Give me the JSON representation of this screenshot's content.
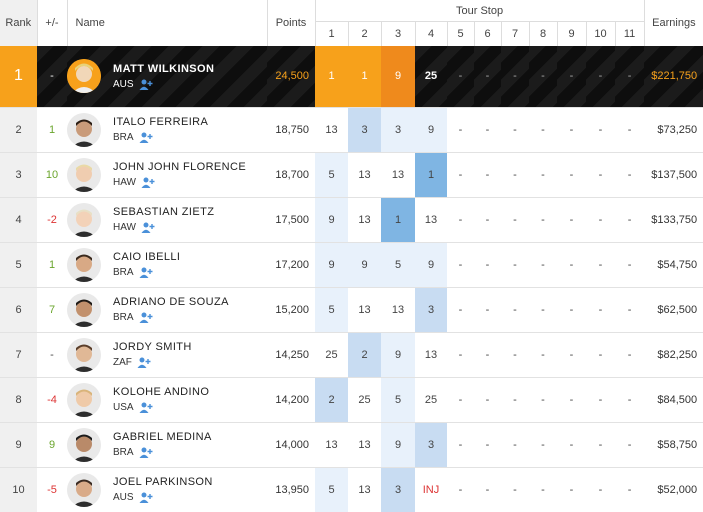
{
  "headers": {
    "rank": "Rank",
    "change": "+/-",
    "name": "Name",
    "points": "Points",
    "tour_stop": "Tour Stop",
    "stops": [
      "1",
      "2",
      "3",
      "4",
      "5",
      "6",
      "7",
      "8",
      "9",
      "10",
      "11"
    ],
    "earnings": "Earnings"
  },
  "leader": {
    "rank": "1",
    "change": "-",
    "name": "MATT WILKINSON",
    "country": "AUS",
    "points": "24,500",
    "results": [
      "1",
      "1",
      "9",
      "25",
      "-",
      "-",
      "-",
      "-",
      "-",
      "-",
      "-"
    ],
    "earnings": "$221,750"
  },
  "rows": [
    {
      "rank": "2",
      "change": "1",
      "dir": "up",
      "name": "ITALO FERREIRA",
      "country": "BRA",
      "points": "18,750",
      "results": [
        "13",
        "3",
        "3",
        "9",
        "-",
        "-",
        "-",
        "-",
        "-",
        "-",
        "-"
      ],
      "shade": [
        "",
        "mid",
        "light",
        "light",
        "",
        "",
        "",
        "",
        "",
        "",
        ""
      ],
      "earnings": "$73,250"
    },
    {
      "rank": "3",
      "change": "10",
      "dir": "up",
      "name": "JOHN JOHN FLORENCE",
      "country": "HAW",
      "points": "18,700",
      "results": [
        "5",
        "13",
        "13",
        "1",
        "-",
        "-",
        "-",
        "-",
        "-",
        "-",
        "-"
      ],
      "shade": [
        "light",
        "",
        "",
        "dark",
        "",
        "",
        "",
        "",
        "",
        "",
        ""
      ],
      "earnings": "$137,500"
    },
    {
      "rank": "4",
      "change": "-2",
      "dir": "down",
      "name": "SEBASTIAN ZIETZ",
      "country": "HAW",
      "points": "17,500",
      "results": [
        "9",
        "13",
        "1",
        "13",
        "-",
        "-",
        "-",
        "-",
        "-",
        "-",
        "-"
      ],
      "shade": [
        "light",
        "",
        "dark",
        "",
        "",
        "",
        "",
        "",
        "",
        "",
        ""
      ],
      "earnings": "$133,750"
    },
    {
      "rank": "5",
      "change": "1",
      "dir": "up",
      "name": "CAIO IBELLI",
      "country": "BRA",
      "points": "17,200",
      "results": [
        "9",
        "9",
        "5",
        "9",
        "-",
        "-",
        "-",
        "-",
        "-",
        "-",
        "-"
      ],
      "shade": [
        "light",
        "light",
        "light",
        "light",
        "",
        "",
        "",
        "",
        "",
        "",
        ""
      ],
      "earnings": "$54,750"
    },
    {
      "rank": "6",
      "change": "7",
      "dir": "up",
      "name": "ADRIANO DE SOUZA",
      "country": "BRA",
      "points": "15,200",
      "results": [
        "5",
        "13",
        "13",
        "3",
        "-",
        "-",
        "-",
        "-",
        "-",
        "-",
        "-"
      ],
      "shade": [
        "light",
        "",
        "",
        "mid",
        "",
        "",
        "",
        "",
        "",
        "",
        ""
      ],
      "earnings": "$62,500"
    },
    {
      "rank": "7",
      "change": "-",
      "dir": "flat",
      "name": "JORDY SMITH",
      "country": "ZAF",
      "points": "14,250",
      "results": [
        "25",
        "2",
        "9",
        "13",
        "-",
        "-",
        "-",
        "-",
        "-",
        "-",
        "-"
      ],
      "shade": [
        "",
        "mid",
        "light",
        "",
        "",
        "",
        "",
        "",
        "",
        "",
        ""
      ],
      "earnings": "$82,250"
    },
    {
      "rank": "8",
      "change": "-4",
      "dir": "down",
      "name": "KOLOHE ANDINO",
      "country": "USA",
      "points": "14,200",
      "results": [
        "2",
        "25",
        "5",
        "25",
        "-",
        "-",
        "-",
        "-",
        "-",
        "-",
        "-"
      ],
      "shade": [
        "mid",
        "",
        "light",
        "",
        "",
        "",
        "",
        "",
        "",
        "",
        ""
      ],
      "earnings": "$84,500"
    },
    {
      "rank": "9",
      "change": "9",
      "dir": "up",
      "name": "GABRIEL MEDINA",
      "country": "BRA",
      "points": "14,000",
      "results": [
        "13",
        "13",
        "9",
        "3",
        "-",
        "-",
        "-",
        "-",
        "-",
        "-",
        "-"
      ],
      "shade": [
        "",
        "",
        "light",
        "mid",
        "",
        "",
        "",
        "",
        "",
        "",
        ""
      ],
      "earnings": "$58,750"
    },
    {
      "rank": "10",
      "change": "-5",
      "dir": "down",
      "name": "JOEL PARKINSON",
      "country": "AUS",
      "points": "13,950",
      "results": [
        "5",
        "13",
        "3",
        "INJ",
        "-",
        "-",
        "-",
        "-",
        "-",
        "-",
        "-"
      ],
      "shade": [
        "light",
        "",
        "mid",
        "inj",
        "",
        "",
        "",
        "",
        "",
        "",
        ""
      ],
      "earnings": "$52,000"
    }
  ],
  "colors": {
    "accent": "#f7a11b",
    "accent_dark": "#ef8a1c",
    "positive": "#6aa52c",
    "negative": "#dd3333",
    "shade_light": "#e8f1fb",
    "shade_mid": "#c8dcf2",
    "shade_dark": "#7fb5e3"
  }
}
